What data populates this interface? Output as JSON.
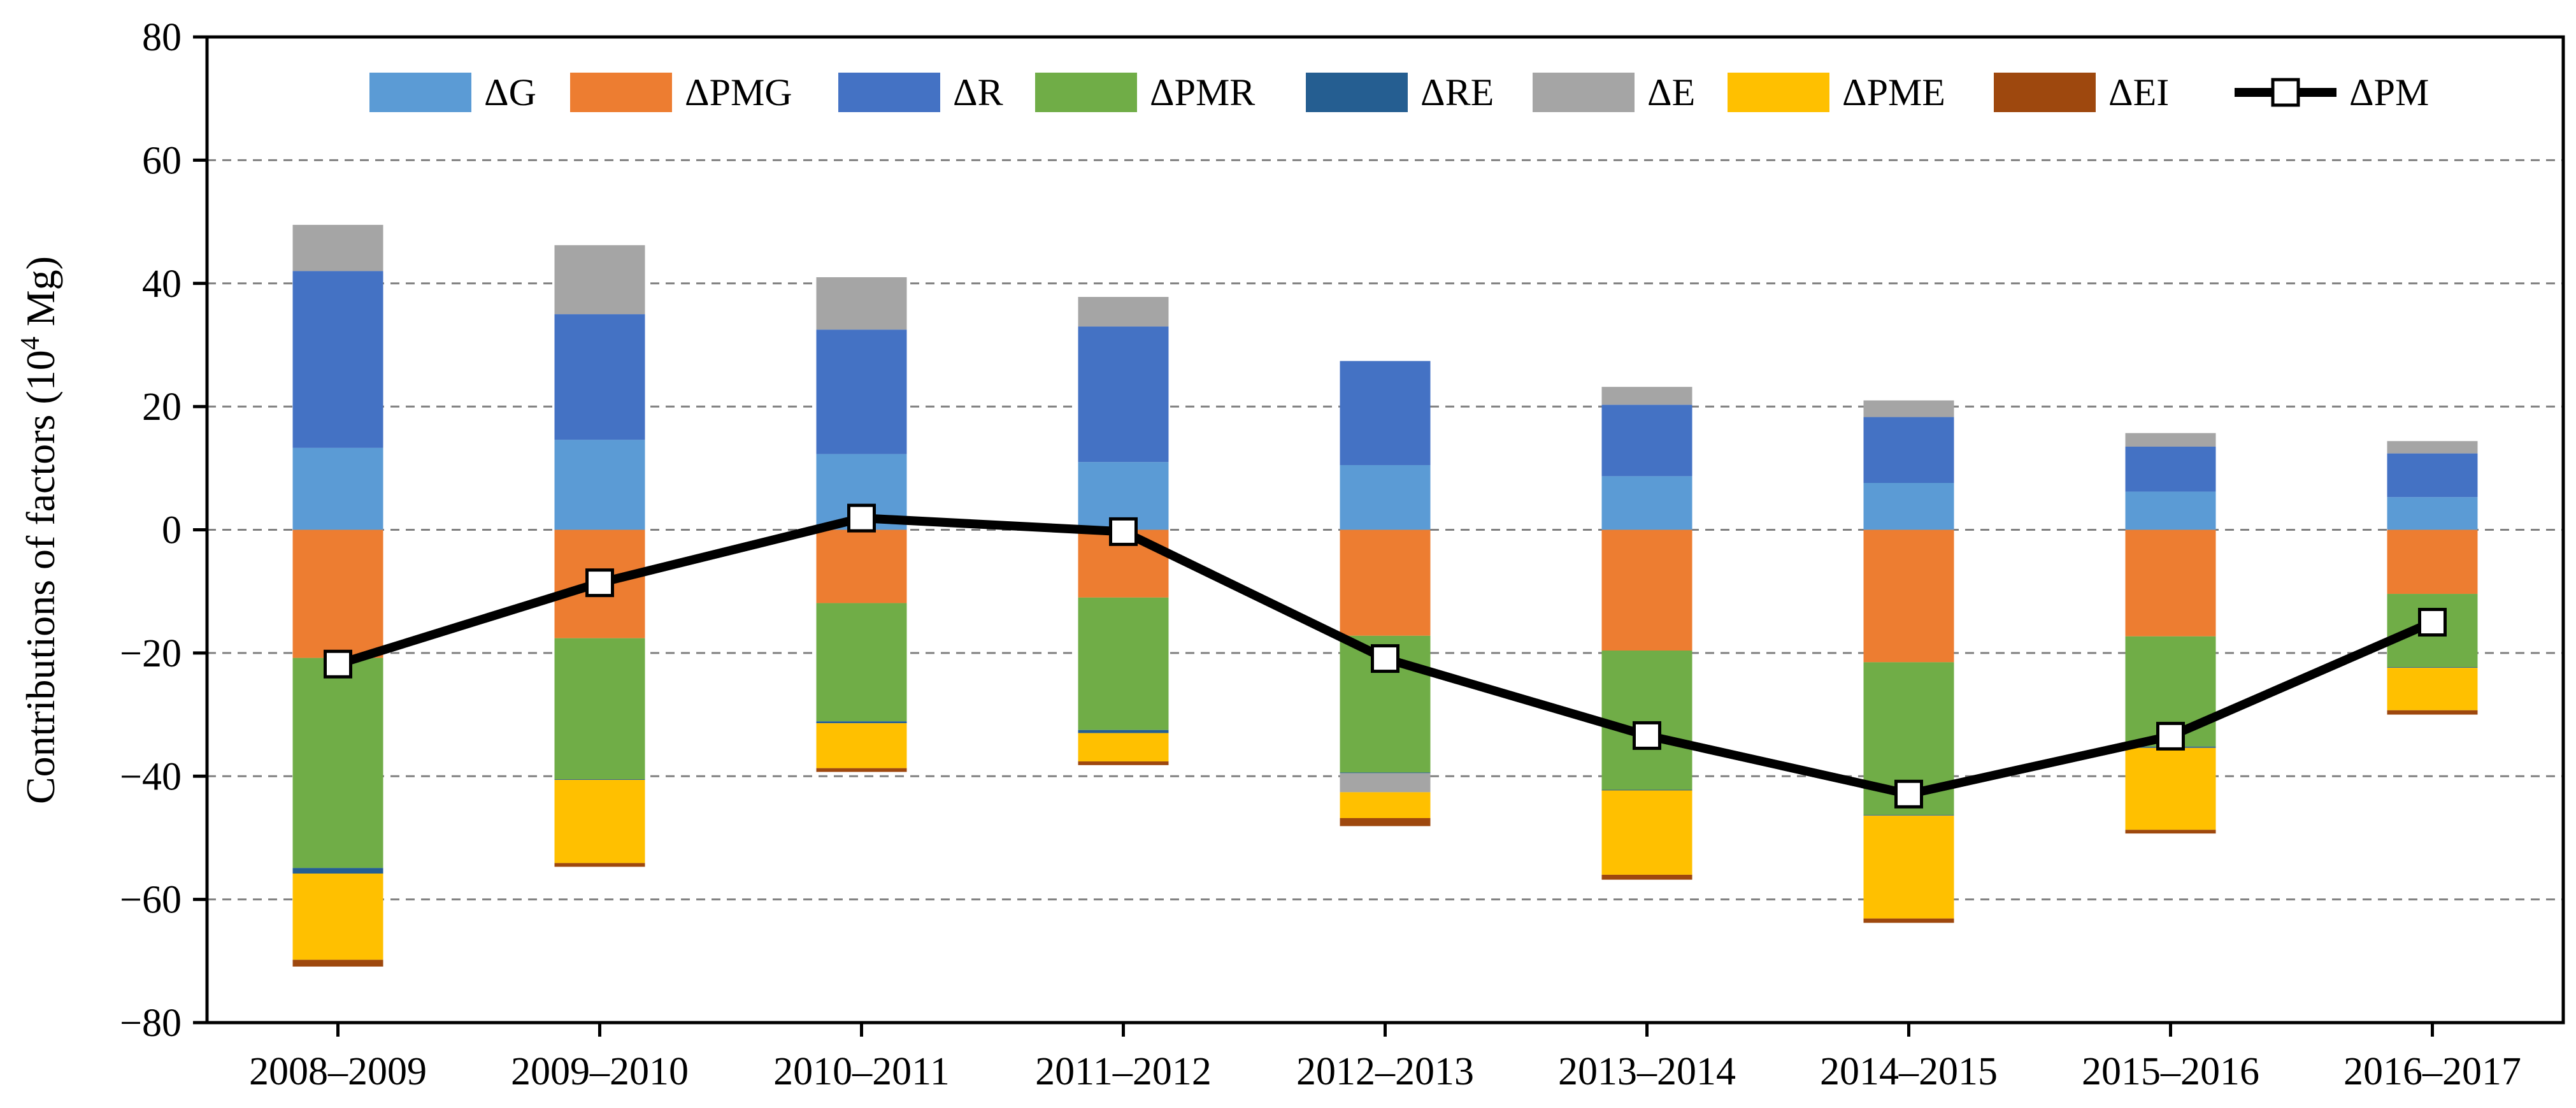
{
  "chart_data": {
    "type": "bar",
    "subtype": "stacked-bar-with-line",
    "title": "",
    "xlabel": "",
    "ylabel": {
      "prefix": "Contributions of  factors (10",
      "superscript": "4",
      "suffix": " Mg)"
    },
    "ylim": [
      -80,
      80
    ],
    "ytick_values": [
      -80,
      -60,
      -40,
      -20,
      0,
      20,
      40,
      60,
      80
    ],
    "ytick_labels": [
      "−80",
      "−60",
      "−40",
      "−20",
      "0",
      "20",
      "40",
      "60",
      "80"
    ],
    "grid": "horizontal-dashed",
    "legend_position": "top",
    "categories": [
      "2008–2009",
      "2009–2010",
      "2010–2011",
      "2011–2012",
      "2012–2013",
      "2013–2014",
      "2014–2015",
      "2015–2016",
      "2016–2017"
    ],
    "series": [
      {
        "name": "ΔG",
        "color": "#5B9BD5",
        "values": [
          13.3,
          14.6,
          12.3,
          11.0,
          10.5,
          8.7,
          7.6,
          6.2,
          5.3
        ]
      },
      {
        "name": "ΔPMG",
        "color": "#ED7D31",
        "values": [
          -20.8,
          -17.6,
          -11.9,
          -11.0,
          -17.2,
          -19.6,
          -21.5,
          -17.3,
          -10.4
        ]
      },
      {
        "name": "ΔR",
        "color": "#4472C4",
        "values": [
          28.7,
          20.4,
          20.2,
          22.0,
          16.9,
          11.6,
          10.7,
          7.3,
          7.1
        ]
      },
      {
        "name": "ΔPMR",
        "color": "#70AD47",
        "values": [
          -34.1,
          -22.9,
          -19.2,
          -21.5,
          -22.2,
          -22.6,
          -24.8,
          -17.9,
          -11.9
        ]
      },
      {
        "name": "ΔRE",
        "color": "#255E91",
        "values": [
          -0.9,
          -0.1,
          -0.3,
          -0.5,
          -0.1,
          -0.1,
          -0.1,
          -0.2,
          -0.1
        ]
      },
      {
        "name": "ΔE",
        "color": "#A5A5A5",
        "values": [
          7.5,
          11.2,
          8.5,
          4.8,
          -3.1,
          2.9,
          2.7,
          2.2,
          2.0
        ]
      },
      {
        "name": "ΔPME",
        "color": "#FFC000",
        "values": [
          -14.0,
          -13.5,
          -7.3,
          -4.6,
          -4.2,
          -13.7,
          -16.7,
          -13.3,
          -6.9
        ]
      },
      {
        "name": "ΔEI",
        "color": "#9E480E",
        "values": [
          -1.1,
          -0.6,
          -0.6,
          -0.6,
          -1.3,
          -0.8,
          -0.7,
          -0.6,
          -0.7
        ]
      }
    ],
    "line_series": {
      "name": "ΔPM",
      "color": "#000000",
      "marker": "square-white",
      "values": [
        -21.8,
        -8.6,
        1.9,
        -0.3,
        -20.9,
        -33.4,
        -42.9,
        -33.5,
        -15.0
      ]
    }
  }
}
